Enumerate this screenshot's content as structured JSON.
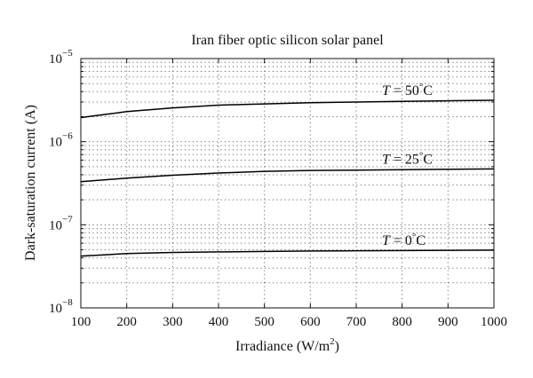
{
  "chart_data": {
    "type": "line",
    "title": "Iran fiber optic silicon solar panel",
    "xlabel": "Irradiance (W/m",
    "xlabel_sup": "2",
    "xlabel_close": ")",
    "ylabel": "Dark-saturation current (A)",
    "xlim": [
      100,
      1000
    ],
    "ylim": [
      1e-08,
      1e-05
    ],
    "yscale": "log",
    "grid": true,
    "x_ticks": [
      "100",
      "200",
      "300",
      "400",
      "500",
      "600",
      "700",
      "800",
      "900",
      "1000"
    ],
    "y_ticks": [
      {
        "value": 1e-08,
        "base": "10",
        "exp": "−8"
      },
      {
        "value": 1e-07,
        "base": "10",
        "exp": "−7"
      },
      {
        "value": 1e-06,
        "base": "10",
        "exp": "−6"
      },
      {
        "value": 1e-05,
        "base": "10",
        "exp": "−5"
      }
    ],
    "series": [
      {
        "name": "T = 50°C",
        "label": {
          "var": "T",
          "text": " = 50",
          "deg": "°",
          "unit": "C"
        },
        "x": [
          100,
          200,
          300,
          400,
          500,
          600,
          700,
          800,
          900,
          1000
        ],
        "y": [
          1.95e-06,
          2.3e-06,
          2.55e-06,
          2.75e-06,
          2.85e-06,
          2.95e-06,
          3e-06,
          3.05e-06,
          3.1e-06,
          3.15e-06
        ]
      },
      {
        "name": "T = 25°C",
        "label": {
          "var": "T",
          "text": " = 25",
          "deg": "°",
          "unit": "C"
        },
        "x": [
          100,
          200,
          300,
          400,
          500,
          600,
          700,
          800,
          900,
          1000
        ],
        "y": [
          3.3e-07,
          3.65e-07,
          3.95e-07,
          4.2e-07,
          4.4e-07,
          4.5e-07,
          4.55e-07,
          4.6e-07,
          4.65e-07,
          4.7e-07
        ]
      },
      {
        "name": "T = 0°C",
        "label": {
          "var": "T",
          "text": " = 0",
          "deg": "°",
          "unit": "C"
        },
        "x": [
          100,
          200,
          300,
          400,
          500,
          600,
          700,
          800,
          900,
          1000
        ],
        "y": [
          4.2e-08,
          4.5e-08,
          4.65e-08,
          4.72e-08,
          4.78e-08,
          4.83e-08,
          4.87e-08,
          4.9e-08,
          4.93e-08,
          4.96e-08
        ]
      }
    ]
  }
}
